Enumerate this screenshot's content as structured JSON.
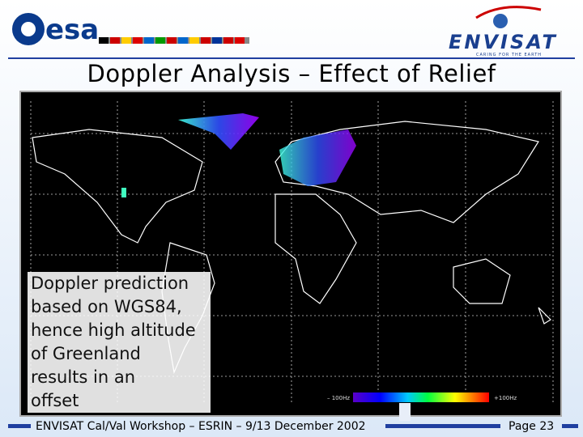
{
  "header": {
    "logo": "esa",
    "mission": "ENVISAT",
    "tagline": "CARING FOR THE EARTH"
  },
  "title": "Doppler Analysis – Effect of Relief",
  "figure": {
    "colorbar_min": "– 100Hz",
    "colorbar_max": "+100Hz"
  },
  "note": {
    "lines": [
      "Doppler prediction",
      "based on WGS84,",
      "hence high altitude",
      "of Greenland",
      "results in an",
      "offset"
    ]
  },
  "footer": {
    "text": "ENVISAT Cal/Val Workshop – ESRIN – 9/13 December 2002",
    "page": "Page 23"
  }
}
